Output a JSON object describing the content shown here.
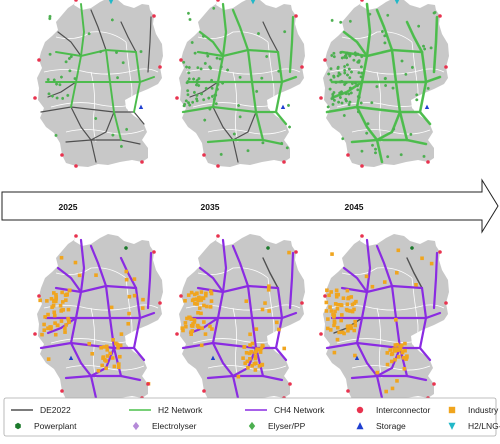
{
  "timeline": {
    "years": [
      "2025",
      "2035",
      "2045"
    ]
  },
  "colors": {
    "land": "#c8c8c8",
    "border": "#ffffff",
    "de2022": "#505050",
    "h2": "#4cc04c",
    "ch4": "#8a2be2",
    "interconnector": "#e8334f",
    "industry": "#f0a51e",
    "powerplant": "#1c7a2c",
    "electrolyser": "#b58ad8",
    "elyser_pp": "#4caf50",
    "storage": "#1f3fd0",
    "terminal": "#22b8c8"
  },
  "legend": [
    {
      "key": "de2022",
      "label": "DE2022",
      "symbol": "line",
      "color": "#505050"
    },
    {
      "key": "h2",
      "label": "H2 Network",
      "symbol": "line",
      "color": "#4cc04c"
    },
    {
      "key": "ch4",
      "label": "CH4 Network",
      "symbol": "line",
      "color": "#8a2be2"
    },
    {
      "key": "interconnector",
      "label": "Interconnector",
      "symbol": "circle",
      "color": "#e8334f"
    },
    {
      "key": "industry",
      "label": "Industry",
      "symbol": "square",
      "color": "#f0a51e"
    },
    {
      "key": "powerplant",
      "label": "Powerplant",
      "symbol": "hexagon",
      "color": "#1c7a2c"
    },
    {
      "key": "electrolyser",
      "label": "Electrolyser",
      "symbol": "diamond",
      "color": "#b58ad8"
    },
    {
      "key": "elyser_pp",
      "label": "Elyser/PP",
      "symbol": "diamond",
      "color": "#4caf50"
    },
    {
      "key": "storage",
      "label": "Storage",
      "symbol": "triangle-up",
      "color": "#1f3fd0"
    },
    {
      "key": "terminal",
      "label": "H2/LNG-Terminal",
      "symbol": "triangle-down",
      "color": "#22b8c8"
    }
  ],
  "panels": [
    {
      "row": "h2",
      "year": "2025",
      "h2_density": 0.35,
      "elyser_count": 30
    },
    {
      "row": "h2",
      "year": "2035",
      "h2_density": 0.7,
      "elyser_count": 75
    },
    {
      "row": "h2",
      "year": "2045",
      "h2_density": 1.0,
      "elyser_count": 120
    },
    {
      "row": "ch4",
      "year": "2025",
      "ch4_density": 1.0,
      "industry_count": 90
    },
    {
      "row": "ch4",
      "year": "2035",
      "ch4_density": 0.9,
      "industry_count": 95
    },
    {
      "row": "ch4",
      "year": "2045",
      "ch4_density": 0.85,
      "industry_count": 100
    }
  ]
}
